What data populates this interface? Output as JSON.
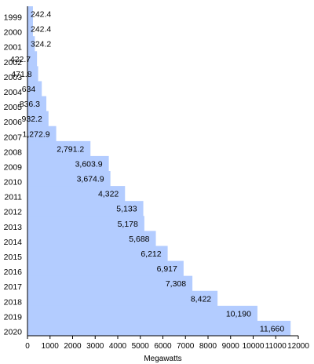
{
  "chart_data": {
    "type": "bar",
    "orientation": "horizontal",
    "categories": [
      "1999",
      "2000",
      "2001",
      "2002",
      "2003",
      "2004",
      "2005",
      "2006",
      "2007",
      "2008",
      "2009",
      "2010",
      "2011",
      "2012",
      "2013",
      "2014",
      "2015",
      "2016",
      "2017",
      "2018",
      "2019",
      "2020"
    ],
    "values": [
      242.4,
      242.4,
      324.2,
      422.7,
      471.8,
      634,
      836.3,
      932.2,
      1272.9,
      2791.2,
      3603.9,
      3674.9,
      4322,
      5133,
      5178,
      5688,
      6212,
      6917,
      7308,
      8422,
      10190,
      11660
    ],
    "value_labels": [
      "242.4",
      "242.4",
      "324.2",
      "422.7",
      "471.8",
      "634",
      "836.3",
      "932.2",
      "1,272.9",
      "2,791.2",
      "3,603.9",
      "3,674.9",
      "4,322",
      "5,133",
      "5,178",
      "5,688",
      "6,212",
      "6,917",
      "7,308",
      "8,422",
      "10,190",
      "11,660"
    ],
    "xlabel": "Megawatts",
    "xlim": [
      0,
      12000
    ],
    "x_ticks": [
      0,
      1000,
      2000,
      3000,
      4000,
      5000,
      6000,
      7000,
      8000,
      9000,
      10000,
      11000,
      12000
    ],
    "grid": false,
    "legend": "none",
    "colors": {
      "bar": "#b3ccff",
      "axis": "#000000",
      "text": "#000000"
    }
  }
}
